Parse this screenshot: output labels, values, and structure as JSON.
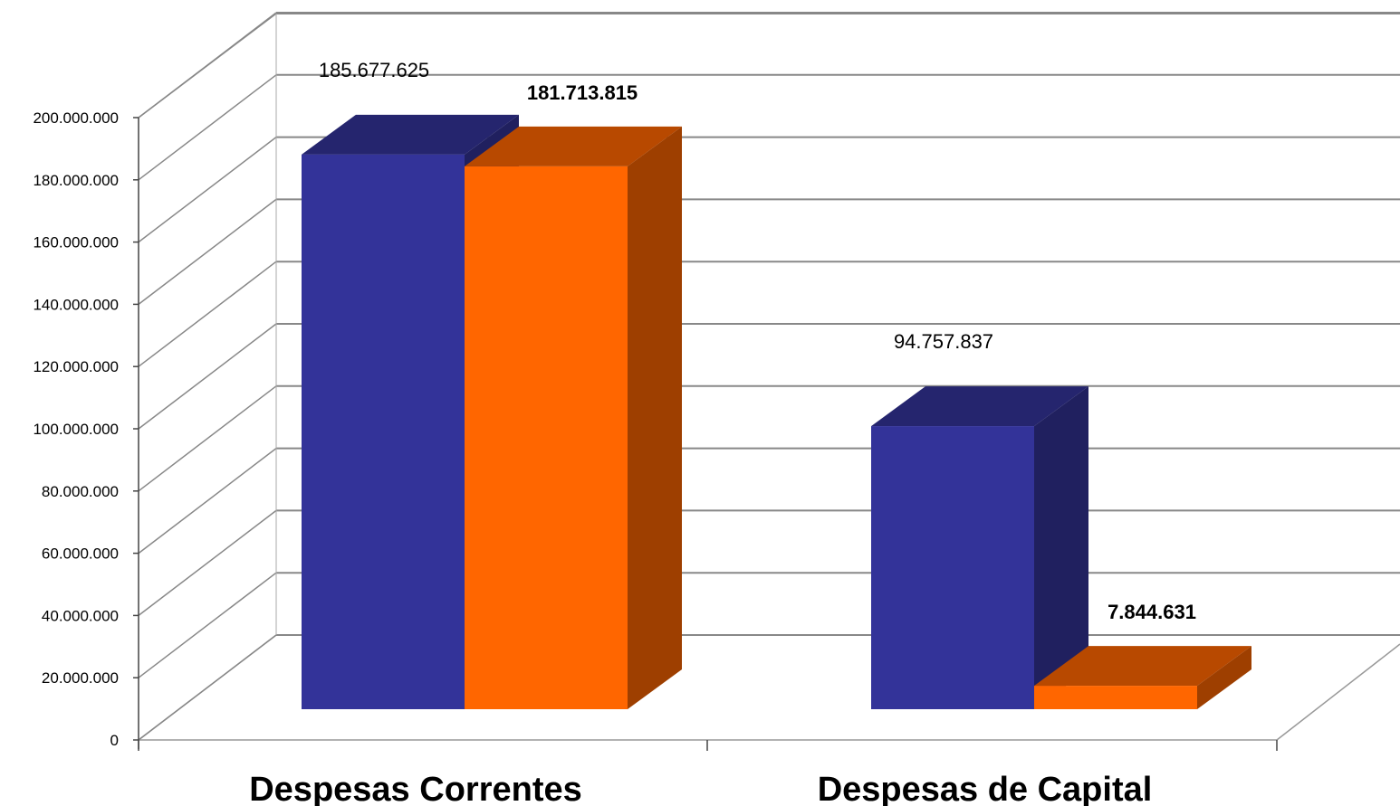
{
  "chart_data": {
    "type": "bar",
    "categories": [
      "Despesas Correntes",
      "Despesas de Capital"
    ],
    "series": [
      {
        "values": [
          185677625,
          94757837
        ],
        "labels": [
          "185.677.625",
          "94.757.837"
        ],
        "label_bold": false,
        "color": "#333399"
      },
      {
        "values": [
          181713815,
          7844631
        ],
        "labels": [
          "181.713.815",
          "7.844.631"
        ],
        "label_bold": true,
        "color": "#ff6600"
      }
    ],
    "ylim": [
      0,
      200000000
    ],
    "yticks": [
      0,
      20000000,
      40000000,
      60000000,
      80000000,
      100000000,
      120000000,
      140000000,
      160000000,
      180000000,
      200000000
    ],
    "ytick_labels": [
      "0",
      "20.000.000",
      "40.000.000",
      "60.000.000",
      "80.000.000",
      "100.000.000",
      "120.000.000",
      "140.000.000",
      "160.000.000",
      "180.000.000",
      "200.000.000"
    ],
    "grid": true,
    "style": "3d-clustered-column"
  }
}
